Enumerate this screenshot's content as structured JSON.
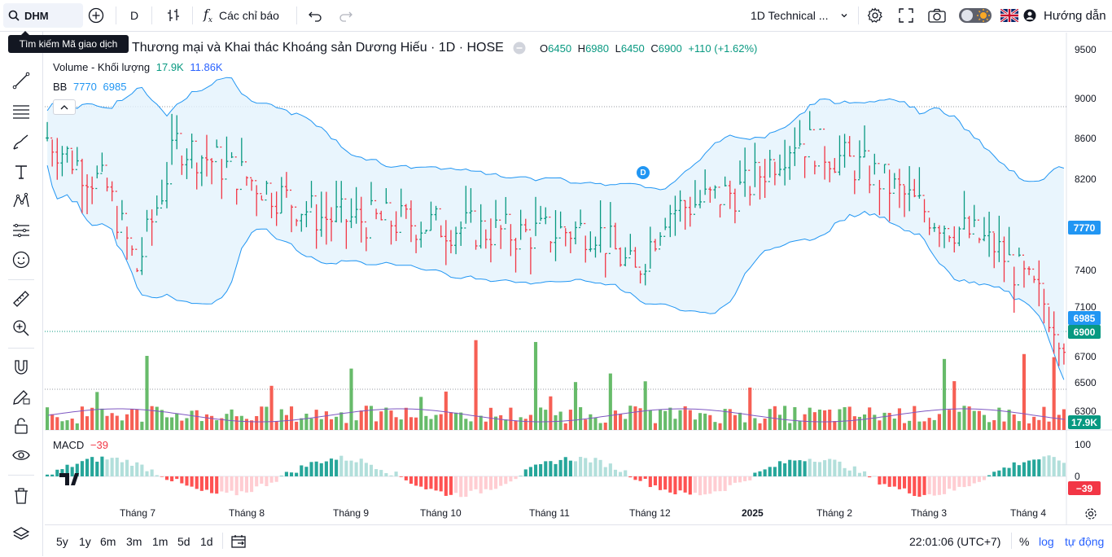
{
  "toolbar": {
    "symbol": "DHM",
    "interval": "D",
    "indicators_label": "Các chỉ báo",
    "layout_name": "1D Technical ...",
    "guide_label": "Hướng dẫn"
  },
  "tooltip": "Tìm kiếm Mã giao dịch",
  "legend": {
    "title": "Thương mại và Khai thác Khoáng sản Dương Hiếu · 1D · HOSE",
    "o_label": "O",
    "o": "6450",
    "h_label": "H",
    "h": "6980",
    "l_label": "L",
    "l": "6450",
    "c_label": "C",
    "c": "6900",
    "change": "+110 (+1.62%)",
    "volume_label": "Volume - Khối lượng",
    "volume_val": "17.9K",
    "volume_ma": "11.86K",
    "bb_label": "BB",
    "bb_1": "7770",
    "bb_2": "6985",
    "macd_label": "MACD",
    "macd_val": "−39"
  },
  "price_axis": [
    "9500",
    "9000",
    "8600",
    "8200",
    "7400",
    "7100",
    "6700",
    "6500",
    "6300"
  ],
  "price_tags": {
    "bb_upper": "7770",
    "bb_lower": "6985",
    "close": "6900",
    "volume": "17.9K"
  },
  "macd_axis": {
    "top": "100",
    "zero": "0",
    "tag": "−39"
  },
  "x_axis": [
    "Tháng 7",
    "Tháng 8",
    "Tháng 9",
    "Tháng 10",
    "Tháng 11",
    "Tháng 12",
    "2025",
    "Tháng 2",
    "Tháng 3",
    "Tháng 4"
  ],
  "dividend_marker": "D",
  "ranges": [
    "5y",
    "1y",
    "6m",
    "3m",
    "1m",
    "5d",
    "1d"
  ],
  "clock": "22:01:06 (UTC+7)",
  "scale_buttons": [
    "%",
    "log",
    "tự động"
  ],
  "colors": {
    "up": "#26a69a",
    "down": "#ef5350",
    "bb": "#2196f3",
    "bb_fill": "#e3f2fd",
    "green_bar": "#4caf50",
    "red_bar": "#f44336"
  }
}
